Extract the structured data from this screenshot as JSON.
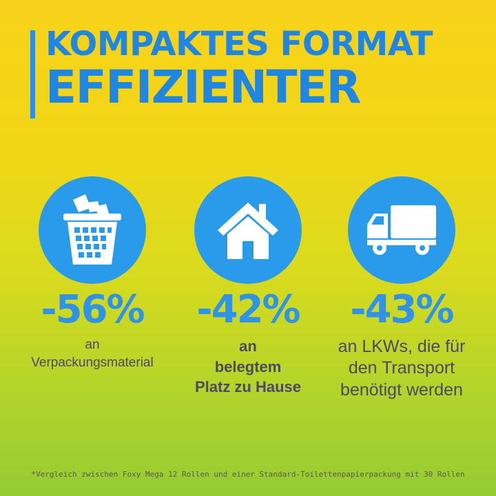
{
  "headline": {
    "line1": "KOMPAKTES FORMAT",
    "line2": "EFFIZIENTER"
  },
  "stats": [
    {
      "icon": "wastebasket-icon",
      "value": "-56%",
      "lines": [
        "an",
        "Verpackungsmaterial"
      ]
    },
    {
      "icon": "house-icon",
      "value": "-42%",
      "lines": [
        "an",
        "belegtem",
        "Platz zu Hause"
      ]
    },
    {
      "icon": "truck-icon",
      "value": "-43%",
      "lines": [
        "an LKWs, die für",
        "den Transport",
        "benötigt werden"
      ]
    }
  ],
  "footnote": "*Vergleich zwischen Foxy Mega 12 Rollen und einer Standard-Toilettenpapierpackung mit 30 Rollen",
  "colors": {
    "accent_blue": "#2a9bea",
    "text_dark": "#4e4868",
    "background_top": "#f8d21a",
    "background_bottom": "#95cb33"
  }
}
